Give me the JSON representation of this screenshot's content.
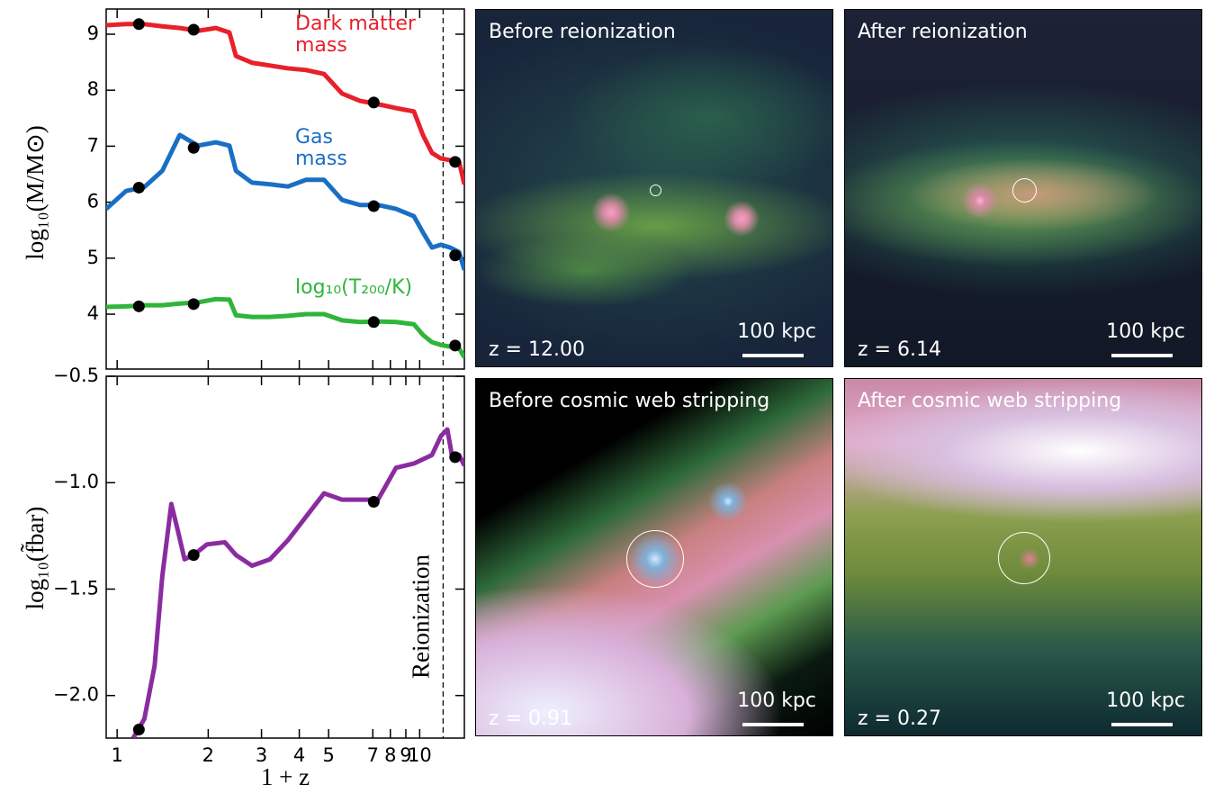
{
  "chart_data": [
    {
      "type": "line",
      "xscale": "log",
      "ylabel": "log₁₀(M/M⊙)",
      "xlim": [
        0.92,
        14.05
      ],
      "ylim": [
        3.02,
        9.45
      ],
      "yticks": [
        4,
        5,
        6,
        7,
        8,
        9
      ],
      "xticks": [
        1,
        2,
        3,
        4,
        5,
        7,
        8,
        9,
        10
      ],
      "x": [
        0.92,
        1.07,
        1.23,
        1.41,
        1.61,
        1.85,
        2.12,
        2.35,
        2.47,
        2.79,
        3.2,
        3.67,
        4.21,
        4.83,
        5.54,
        6.35,
        7.28,
        8.35,
        9.57,
        10.25,
        10.98,
        11.76,
        12.6,
        13.5,
        14.05
      ],
      "snapshot_x": [
        1.18,
        1.79,
        7.05,
        13.1
      ],
      "series": [
        {
          "name": "Dark matter mass",
          "color": "#e8202a",
          "values": [
            9.16,
            9.18,
            9.18,
            9.14,
            9.11,
            9.06,
            9.11,
            9.03,
            8.61,
            8.49,
            8.44,
            8.39,
            8.36,
            8.29,
            7.94,
            7.81,
            7.75,
            7.68,
            7.62,
            7.2,
            6.88,
            6.78,
            6.75,
            6.72,
            6.32
          ],
          "snapshot_values": [
            9.18,
            9.08,
            7.78,
            6.72
          ]
        },
        {
          "name": "Gas mass",
          "color": "#1a6fc4",
          "values": [
            5.88,
            6.2,
            6.27,
            6.56,
            7.2,
            7.01,
            7.07,
            7.01,
            6.56,
            6.35,
            6.32,
            6.28,
            6.4,
            6.4,
            6.04,
            5.95,
            5.95,
            5.88,
            5.75,
            5.46,
            5.19,
            5.24,
            5.19,
            5.11,
            4.79
          ],
          "snapshot_values": [
            6.26,
            6.97,
            5.93,
            5.05
          ]
        },
        {
          "name": "log₁₀(T₂₀₀/K)",
          "color": "#2fb53a",
          "values": [
            4.13,
            4.14,
            4.16,
            4.16,
            4.19,
            4.21,
            4.27,
            4.26,
            3.98,
            3.95,
            3.95,
            3.97,
            4.0,
            4.0,
            3.89,
            3.86,
            3.87,
            3.86,
            3.82,
            3.63,
            3.5,
            3.45,
            3.42,
            3.39,
            3.23
          ],
          "snapshot_values": [
            4.14,
            4.18,
            3.86,
            3.44
          ]
        }
      ]
    },
    {
      "type": "line",
      "xscale": "log",
      "ylabel": "log₁₀(f̃bar)",
      "xlabel": "1 + z",
      "xlim": [
        0.92,
        14.05
      ],
      "ylim": [
        -2.2,
        -0.5
      ],
      "yticks": [
        {
          "value": -0.5,
          "label": "−0.5"
        },
        {
          "value": -1.0,
          "label": "−1.0"
        },
        {
          "value": -1.5,
          "label": "−1.5"
        },
        {
          "value": -2.0,
          "label": "−2.0"
        }
      ],
      "xticks": [
        1,
        2,
        3,
        4,
        5,
        7,
        8,
        9,
        10
      ],
      "x": [
        1.13,
        1.23,
        1.33,
        1.41,
        1.51,
        1.59,
        1.67,
        1.79,
        1.98,
        2.27,
        2.47,
        2.79,
        3.2,
        3.67,
        4.21,
        4.83,
        5.54,
        6.35,
        7.28,
        8.35,
        9.57,
        10.98,
        11.76,
        12.34,
        12.85,
        13.5,
        14.05
      ],
      "snapshot_x": [
        1.18,
        1.79,
        7.05,
        13.1
      ],
      "vline": {
        "x": 11.95,
        "label": "Reionization"
      },
      "series": [
        {
          "color": "#8a2ca0",
          "values": [
            -2.2,
            -2.11,
            -1.86,
            -1.44,
            -1.1,
            -1.23,
            -1.36,
            -1.34,
            -1.29,
            -1.28,
            -1.34,
            -1.39,
            -1.36,
            -1.27,
            -1.16,
            -1.05,
            -1.08,
            -1.08,
            -1.08,
            -0.93,
            -0.91,
            -0.87,
            -0.78,
            -0.75,
            -0.89,
            -0.87,
            -0.92
          ],
          "snapshot_values": [
            -2.16,
            -1.34,
            -1.09,
            -0.88
          ]
        }
      ]
    }
  ],
  "panels": [
    {
      "title": "Before reionization",
      "redshift": "z = 12.00",
      "scale_bar": "100 kpc"
    },
    {
      "title": "After reionization",
      "redshift": "z = 6.14",
      "scale_bar": "100 kpc"
    },
    {
      "title": "Before cosmic web stripping",
      "redshift": "z = 0.91",
      "scale_bar": "100 kpc"
    },
    {
      "title": "After cosmic web stripping",
      "redshift": "z = 0.27",
      "scale_bar": "100 kpc"
    }
  ]
}
